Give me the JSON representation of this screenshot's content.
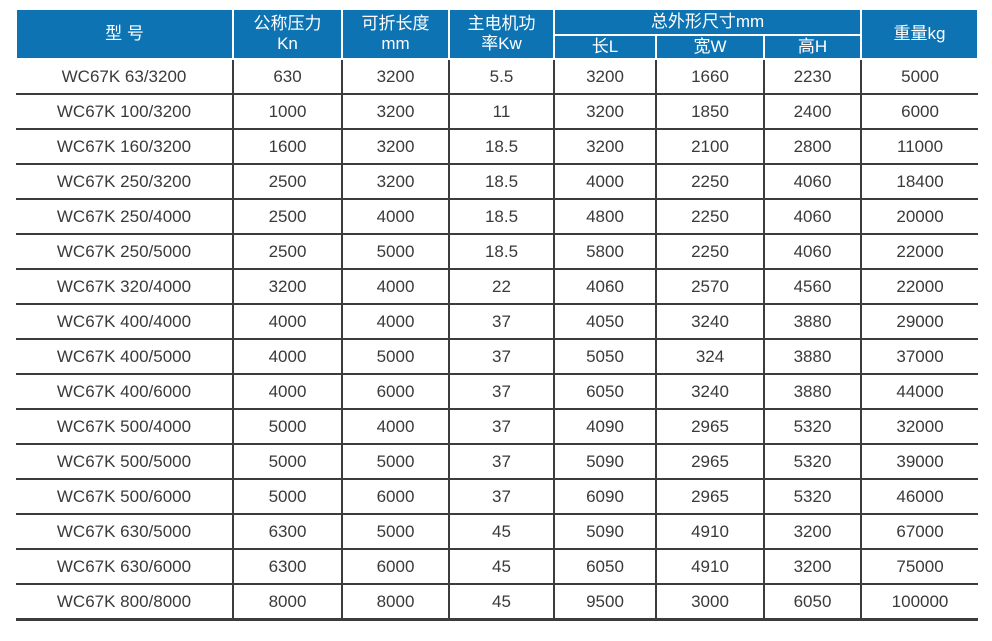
{
  "table": {
    "header": {
      "model": "型 号",
      "pressure": {
        "line1": "公称压力",
        "line2": "Kn"
      },
      "fold_length": {
        "line1": "可折长度",
        "line2": "mm"
      },
      "motor_power": {
        "line1": "主电机功",
        "line2": "率Kw"
      },
      "dimensions_group": "总外形尺寸mm",
      "dim_length": "长L",
      "dim_width": "宽W",
      "dim_height": "高H",
      "weight": "重量kg"
    },
    "rows": [
      [
        "WC67K 63/3200",
        "630",
        "3200",
        "5.5",
        "3200",
        "1660",
        "2230",
        "5000"
      ],
      [
        "WC67K 100/3200",
        "1000",
        "3200",
        "11",
        "3200",
        "1850",
        "2400",
        "6000"
      ],
      [
        "WC67K 160/3200",
        "1600",
        "3200",
        "18.5",
        "3200",
        "2100",
        "2800",
        "11000"
      ],
      [
        "WC67K 250/3200",
        "2500",
        "3200",
        "18.5",
        "4000",
        "2250",
        "4060",
        "18400"
      ],
      [
        "WC67K 250/4000",
        "2500",
        "4000",
        "18.5",
        "4800",
        "2250",
        "4060",
        "20000"
      ],
      [
        "WC67K 250/5000",
        "2500",
        "5000",
        "18.5",
        "5800",
        "2250",
        "4060",
        "22000"
      ],
      [
        "WC67K 320/4000",
        "3200",
        "4000",
        "22",
        "4060",
        "2570",
        "4560",
        "22000"
      ],
      [
        "WC67K 400/4000",
        "4000",
        "4000",
        "37",
        "4050",
        "3240",
        "3880",
        "29000"
      ],
      [
        "WC67K 400/5000",
        "4000",
        "5000",
        "37",
        "5050",
        "324",
        "3880",
        "37000"
      ],
      [
        "WC67K 400/6000",
        "4000",
        "6000",
        "37",
        "6050",
        "3240",
        "3880",
        "44000"
      ],
      [
        "WC67K 500/4000",
        "5000",
        "4000",
        "37",
        "4090",
        "2965",
        "5320",
        "32000"
      ],
      [
        "WC67K 500/5000",
        "5000",
        "5000",
        "37",
        "5090",
        "2965",
        "5320",
        "39000"
      ],
      [
        "WC67K 500/6000",
        "5000",
        "6000",
        "37",
        "6090",
        "2965",
        "5320",
        "46000"
      ],
      [
        "WC67K 630/5000",
        "6300",
        "5000",
        "45",
        "5090",
        "4910",
        "3200",
        "67000"
      ],
      [
        "WC67K 630/6000",
        "6300",
        "6000",
        "45",
        "6050",
        "4910",
        "3200",
        "75000"
      ],
      [
        "WC67K 800/8000",
        "8000",
        "8000",
        "45",
        "9500",
        "3000",
        "6050",
        "100000"
      ]
    ],
    "colors": {
      "header_bg": "#0d73b2",
      "header_text": "#ffffff",
      "body_text": "#3a3a3a",
      "grid_line": "#3c3c3c"
    }
  }
}
